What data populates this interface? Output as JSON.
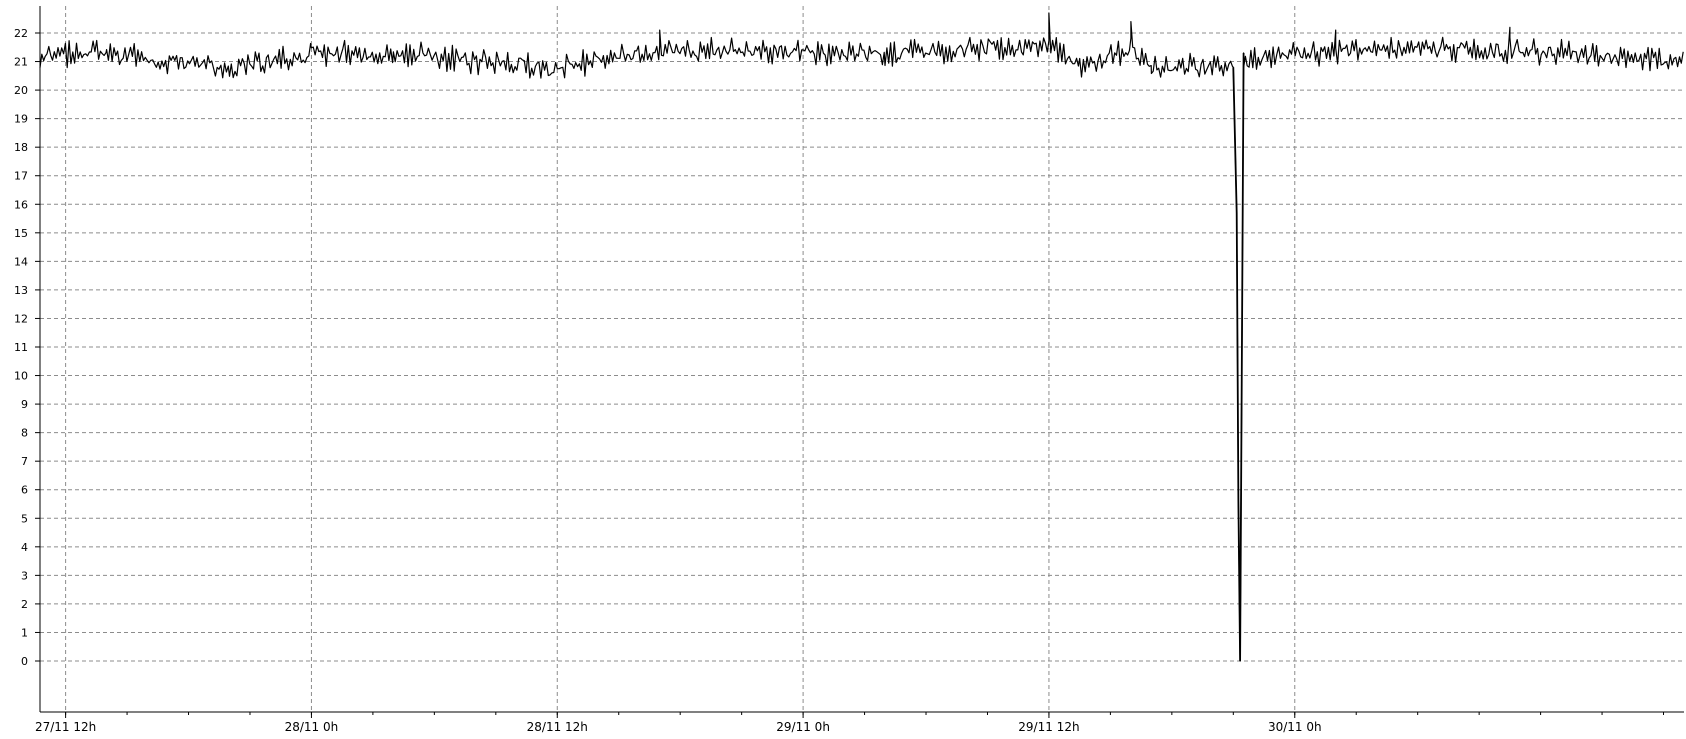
{
  "chart_data": {
    "type": "line",
    "title": "",
    "xlabel": "",
    "ylabel": "",
    "ylim": [
      0,
      22
    ],
    "y_ticks": [
      0,
      1,
      2,
      3,
      4,
      5,
      6,
      7,
      8,
      9,
      10,
      11,
      12,
      13,
      14,
      15,
      16,
      17,
      18,
      19,
      20,
      21,
      22
    ],
    "y_tick_labels": [
      "0",
      "1",
      "2",
      "3",
      "4",
      "5",
      "6",
      "7",
      "8",
      "9",
      "10",
      "11",
      "12",
      "13",
      "14",
      "15",
      "16",
      "17",
      "18",
      "19",
      "20",
      "21",
      "22"
    ],
    "x_time_unit": "hours",
    "xlim": [
      "27/11 10:45",
      "30/11 19:00"
    ],
    "x_ticks": [
      {
        "label": "27/11 12h",
        "time": "27/11 12:00"
      },
      {
        "label": "28/11 0h",
        "time": "28/11 00:00"
      },
      {
        "label": "28/11 12h",
        "time": "28/11 12:00"
      },
      {
        "label": "29/11 0h",
        "time": "29/11 00:00"
      },
      {
        "label": "29/11 12h",
        "time": "29/11 12:00"
      },
      {
        "label": "30/11 0h",
        "time": "30/11 00:00"
      }
    ],
    "grid": true,
    "series": [
      {
        "color": "#000000",
        "baseline": 21.0,
        "noise_amplitude": 0.5,
        "points": [
          {
            "time": "27/11 10:45",
            "value": 21.0
          },
          {
            "time": "27/11 11:00",
            "value": 21.6
          },
          {
            "time": "27/11 14:00",
            "value": 21.9
          },
          {
            "time": "27/11 20:00",
            "value": 20.3
          },
          {
            "time": "28/11 00:00",
            "value": 21.9
          },
          {
            "time": "28/11 04:00",
            "value": 21.8
          },
          {
            "time": "28/11 12:00",
            "value": 20.4
          },
          {
            "time": "28/11 17:00",
            "value": 22.1
          },
          {
            "time": "29/11 00:00",
            "value": 21.9
          },
          {
            "time": "29/11 04:00",
            "value": 21.8
          },
          {
            "time": "29/11 12:00",
            "value": 22.7
          },
          {
            "time": "29/11 13:30",
            "value": 20.2
          },
          {
            "time": "29/11 16:00",
            "value": 22.4
          },
          {
            "time": "29/11 17:00",
            "value": 20.2
          },
          {
            "time": "29/11 21:00",
            "value": 20.8
          },
          {
            "time": "29/11 21:10",
            "value": 15.7
          },
          {
            "time": "29/11 21:15",
            "value": 5.6
          },
          {
            "time": "29/11 21:20",
            "value": 0
          },
          {
            "time": "29/11 21:25",
            "value": 10.2
          },
          {
            "time": "29/11 21:30",
            "value": 21.3
          },
          {
            "time": "30/11 02:00",
            "value": 22.1
          },
          {
            "time": "30/11 10:30",
            "value": 22.2
          },
          {
            "time": "30/11 19:00",
            "value": 20.9
          }
        ]
      }
    ]
  }
}
